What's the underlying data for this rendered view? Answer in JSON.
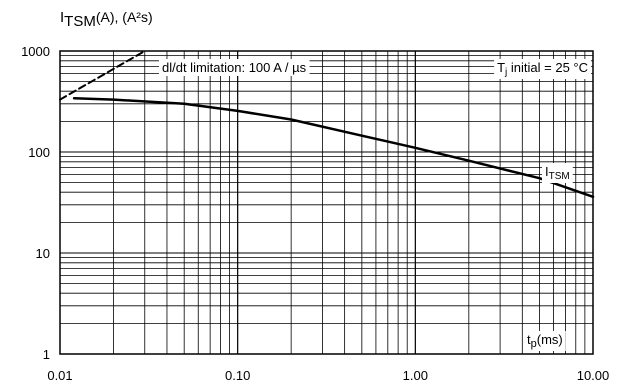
{
  "chart_data": {
    "type": "line",
    "y_axis_label": {
      "main": "I",
      "sub": "TSM",
      "rest": "(A), (A²s)"
    },
    "x_axis_label": {
      "main": "t",
      "sub": "p",
      "rest": "(ms)"
    },
    "x_scale": "log",
    "y_scale": "log",
    "xlim": [
      0.01,
      10
    ],
    "ylim": [
      1,
      1000
    ],
    "x_ticks": [
      "0.01",
      "0.10",
      "1.00",
      "10.00"
    ],
    "y_ticks": [
      "1000",
      "100",
      "10",
      "1"
    ],
    "grid": true,
    "annotations": {
      "didt": "dl/dt limitation: 100 A / µs",
      "tj": {
        "main": "T",
        "sub": "j",
        "rest": " initial = 25 °C"
      },
      "itsm": {
        "main": "I",
        "sub": "TSM"
      }
    },
    "series": [
      {
        "name": "ITSM",
        "style": "solid",
        "x": [
          0.012,
          0.02,
          0.05,
          0.1,
          0.2,
          0.5,
          1,
          2,
          5,
          10
        ],
        "y": [
          340,
          330,
          300,
          255,
          210,
          145,
          110,
          82,
          55,
          36
        ]
      },
      {
        "name": "dI/dt limitation",
        "style": "dashed",
        "x": [
          0.01,
          0.03
        ],
        "y": [
          330,
          1000
        ]
      }
    ]
  }
}
